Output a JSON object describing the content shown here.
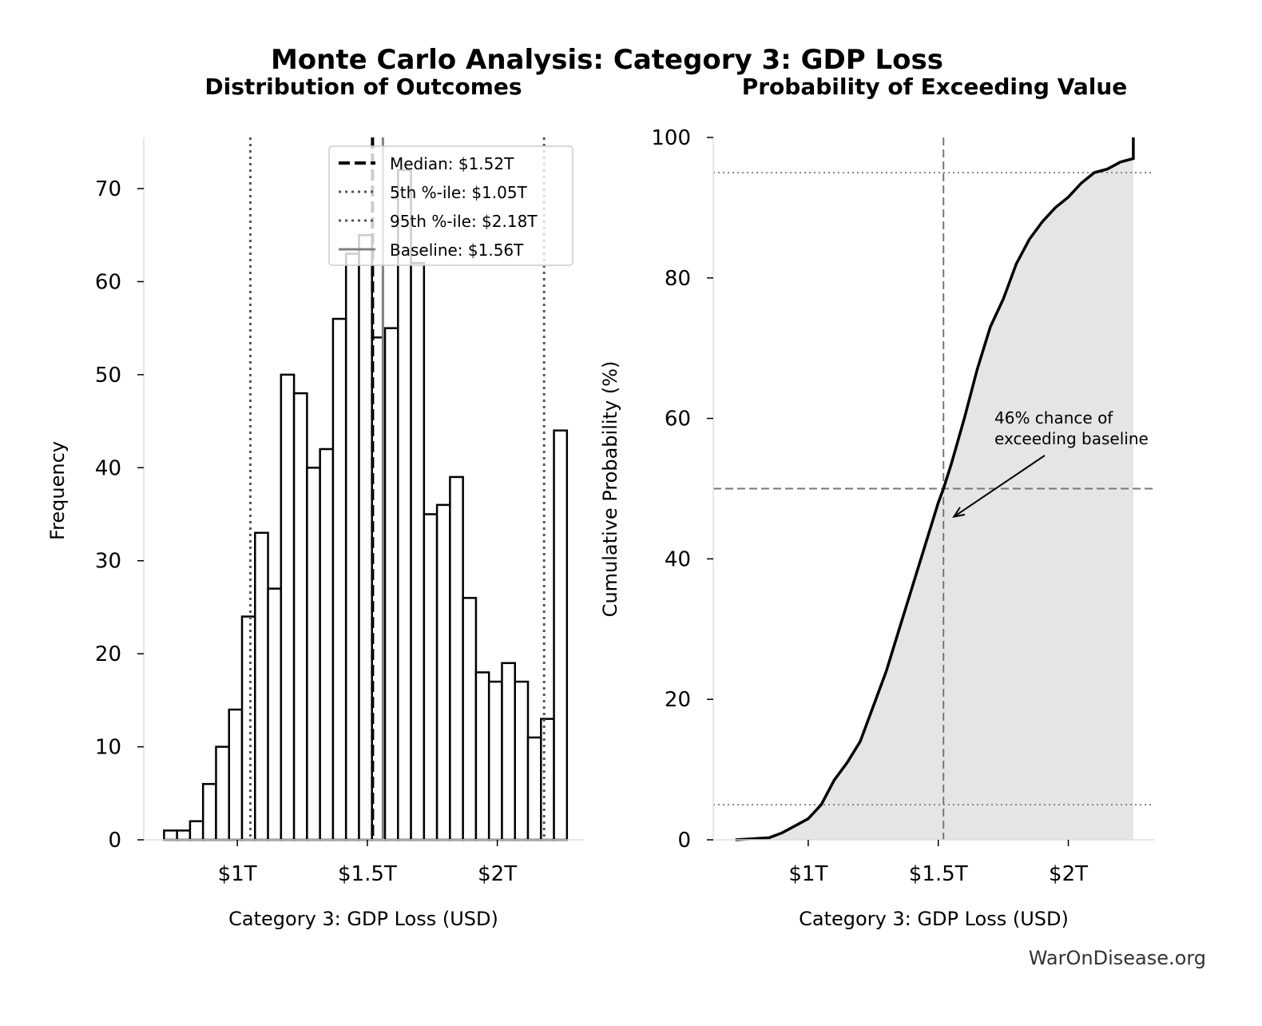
{
  "suptitle": "Monte Carlo Analysis: Category 3: GDP Loss",
  "watermark": "WarOnDisease.org",
  "colors": {
    "bar_fill": "#ffffff",
    "bar_edge": "#000000",
    "shade": "#e5e5e5",
    "baseline": "#808080",
    "percentile": "#555555",
    "spine": "#dddddd"
  },
  "chart_data": [
    {
      "type": "bar",
      "title": "Distribution of Outcomes",
      "xlabel": "Category 3: GDP Loss (USD)",
      "ylabel": "Frequency",
      "bin_start": 0.718,
      "bin_width": 0.05,
      "values": [
        1,
        1,
        2,
        6,
        10,
        14,
        24,
        33,
        27,
        50,
        48,
        40,
        42,
        56,
        63,
        65,
        54,
        55,
        72,
        62,
        35,
        36,
        39,
        26,
        18,
        17,
        19,
        17,
        11,
        13,
        44
      ],
      "xlim": [
        0.64,
        2.33
      ],
      "ylim": [
        0,
        75.5
      ],
      "xticks": [
        {
          "v": 1,
          "label": "$1T"
        },
        {
          "v": 1.5,
          "label": "$1.5T"
        },
        {
          "v": 2,
          "label": "$2T"
        }
      ],
      "yticks": [
        0,
        10,
        20,
        30,
        40,
        50,
        60,
        70
      ],
      "grid": false,
      "legend_position": "top-right",
      "reference_lines": [
        {
          "value": 1.52,
          "label": "Median: $1.52T",
          "style": "dashed",
          "color": "#000000"
        },
        {
          "value": 1.05,
          "label": "5th %-ile: $1.05T",
          "style": "dotted",
          "color": "#555555"
        },
        {
          "value": 2.18,
          "label": "95th %-ile: $2.18T",
          "style": "dotted",
          "color": "#555555"
        },
        {
          "value": 1.56,
          "label": "Baseline: $1.56T",
          "style": "solid",
          "color": "#808080"
        }
      ]
    },
    {
      "type": "area",
      "title": "Probability of Exceeding Value",
      "xlabel": "Category 3: GDP Loss (USD)",
      "ylabel": "Cumulative Probability (%)",
      "x": [
        0.72,
        0.85,
        0.9,
        0.95,
        1.0,
        1.05,
        1.1,
        1.15,
        1.2,
        1.25,
        1.3,
        1.35,
        1.4,
        1.45,
        1.5,
        1.52,
        1.55,
        1.6,
        1.65,
        1.7,
        1.75,
        1.8,
        1.85,
        1.9,
        1.95,
        2.0,
        2.05,
        2.1,
        2.15,
        2.2,
        2.25,
        2.25
      ],
      "y": [
        0,
        0.3,
        1,
        2,
        3,
        5,
        8.5,
        11,
        14,
        19,
        24,
        30,
        36,
        42,
        48,
        50,
        53.5,
        60,
        67,
        73,
        77,
        82,
        85.5,
        88,
        90,
        91.5,
        93.5,
        95,
        95.5,
        96.5,
        97,
        100
      ],
      "xlim": [
        0.635,
        2.33
      ],
      "ylim": [
        0,
        100
      ],
      "xticks": [
        {
          "v": 1,
          "label": "$1T"
        },
        {
          "v": 1.5,
          "label": "$1.5T"
        },
        {
          "v": 2,
          "label": "$2T"
        }
      ],
      "yticks": [
        0,
        20,
        40,
        60,
        80,
        100
      ],
      "grid": false,
      "reference_lines": [
        {
          "axis": "x",
          "value": 1.52,
          "style": "dashed"
        },
        {
          "axis": "y",
          "value": 50,
          "style": "dashed"
        },
        {
          "axis": "y",
          "value": 5,
          "style": "dotted"
        },
        {
          "axis": "y",
          "value": 95,
          "style": "dotted"
        }
      ],
      "annotation": {
        "line1": "46% chance of",
        "line2": "exceeding baseline",
        "arrow_to": {
          "x": 1.56,
          "y": 46
        }
      }
    }
  ]
}
